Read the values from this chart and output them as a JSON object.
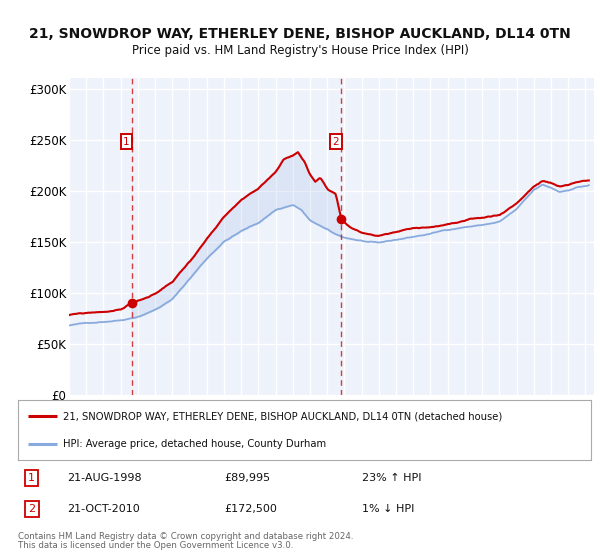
{
  "title": "21, SNOWDROP WAY, ETHERLEY DENE, BISHOP AUCKLAND, DL14 0TN",
  "subtitle": "Price paid vs. HM Land Registry's House Price Index (HPI)",
  "ylim": [
    0,
    310000
  ],
  "xlim_start": 1995.0,
  "xlim_end": 2025.5,
  "yticks": [
    0,
    50000,
    100000,
    150000,
    200000,
    250000,
    300000
  ],
  "ytick_labels": [
    "£0",
    "£50K",
    "£100K",
    "£150K",
    "£200K",
    "£250K",
    "£300K"
  ],
  "bg_color": "#ffffff",
  "plot_bg_color": "#eef2fb",
  "grid_color": "#ffffff",
  "sale1_date": 1998.64,
  "sale1_price": 89995,
  "sale2_date": 2010.8,
  "sale2_price": 172500,
  "red_line_color": "#cc0000",
  "blue_line_color": "#88aadd",
  "sale_dot_color": "#cc0000",
  "vline_color": "#cc0000",
  "legend_line1": "21, SNOWDROP WAY, ETHERLEY DENE, BISHOP AUCKLAND, DL14 0TN (detached house)",
  "legend_line2": "HPI: Average price, detached house, County Durham",
  "info1_num": "1",
  "info1_date": "21-AUG-1998",
  "info1_price": "£89,995",
  "info1_hpi": "23% ↑ HPI",
  "info2_num": "2",
  "info2_date": "21-OCT-2010",
  "info2_price": "£172,500",
  "info2_hpi": "1% ↓ HPI",
  "footer1": "Contains HM Land Registry data © Crown copyright and database right 2024.",
  "footer2": "This data is licensed under the Open Government Licence v3.0."
}
